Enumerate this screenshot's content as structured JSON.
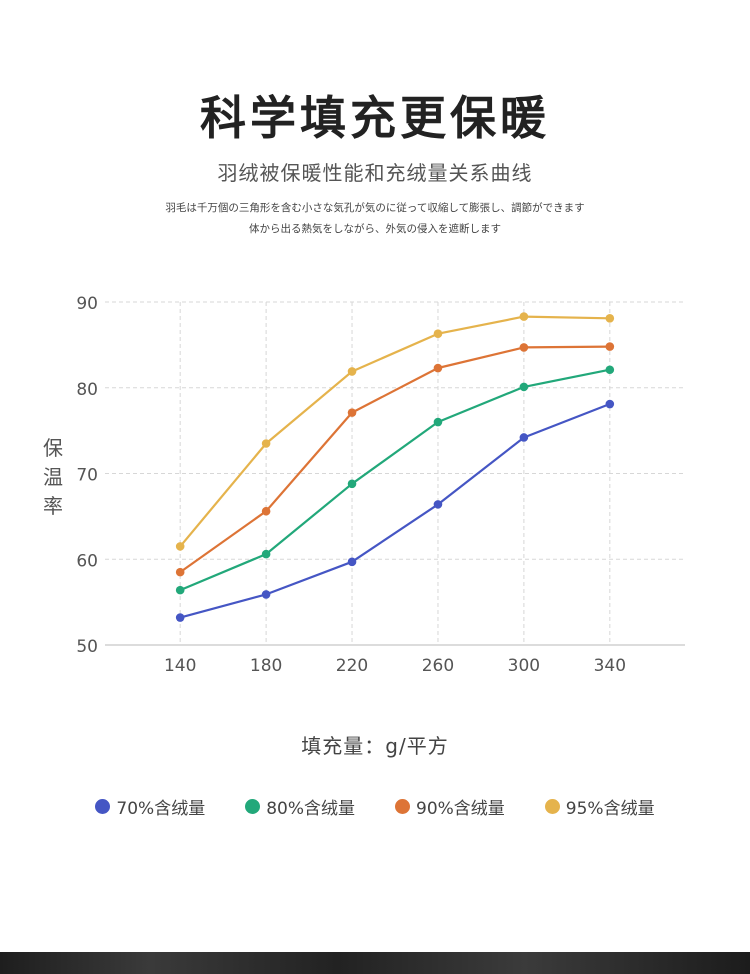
{
  "header": {
    "title": "科学填充更保暖",
    "subtitle": "羽绒被保暖性能和充绒量关系曲线",
    "desc_line1": "羽毛は千万個の三角形を含む小さな気孔が気のに従って収縮して膨張し、調節ができます",
    "desc_line2": "体から出る熱気をしながら、外気の侵入を遮断します"
  },
  "colors": {
    "s70": "#4556c4",
    "s80": "#22a87a",
    "s90": "#dd7436",
    "s95": "#e5b34c",
    "grid": "#d7d7d7",
    "axis": "#c8c8c8"
  },
  "chart_data": {
    "type": "line",
    "title": "羽绒被保暖性能和充绒量关系曲线",
    "xlabel": "填充量：g/平方",
    "ylabel": "保温率",
    "x": [
      140,
      180,
      220,
      260,
      300,
      340
    ],
    "xlim": [
      105,
      375
    ],
    "ylim": [
      50,
      90
    ],
    "yticks": [
      50,
      60,
      70,
      80,
      90
    ],
    "grid": true,
    "legend_position": "bottom",
    "series": [
      {
        "name": "70%含绒量",
        "color": "#4556c4",
        "values": [
          53.2,
          55.9,
          59.7,
          66.4,
          74.2,
          78.1
        ]
      },
      {
        "name": "80%含绒量",
        "color": "#22a87a",
        "values": [
          56.4,
          60.6,
          68.8,
          76.0,
          80.1,
          82.1
        ]
      },
      {
        "name": "90%含绒量",
        "color": "#dd7436",
        "values": [
          58.5,
          65.6,
          77.1,
          82.3,
          84.7,
          84.8
        ]
      },
      {
        "name": "95%含绒量",
        "color": "#e5b34c",
        "values": [
          61.5,
          73.5,
          81.9,
          86.3,
          88.3,
          88.1
        ]
      }
    ]
  },
  "axis_text": {
    "ylabel_chars": [
      "保",
      "温",
      "率"
    ],
    "xlabel": "填充量：g/平方"
  }
}
